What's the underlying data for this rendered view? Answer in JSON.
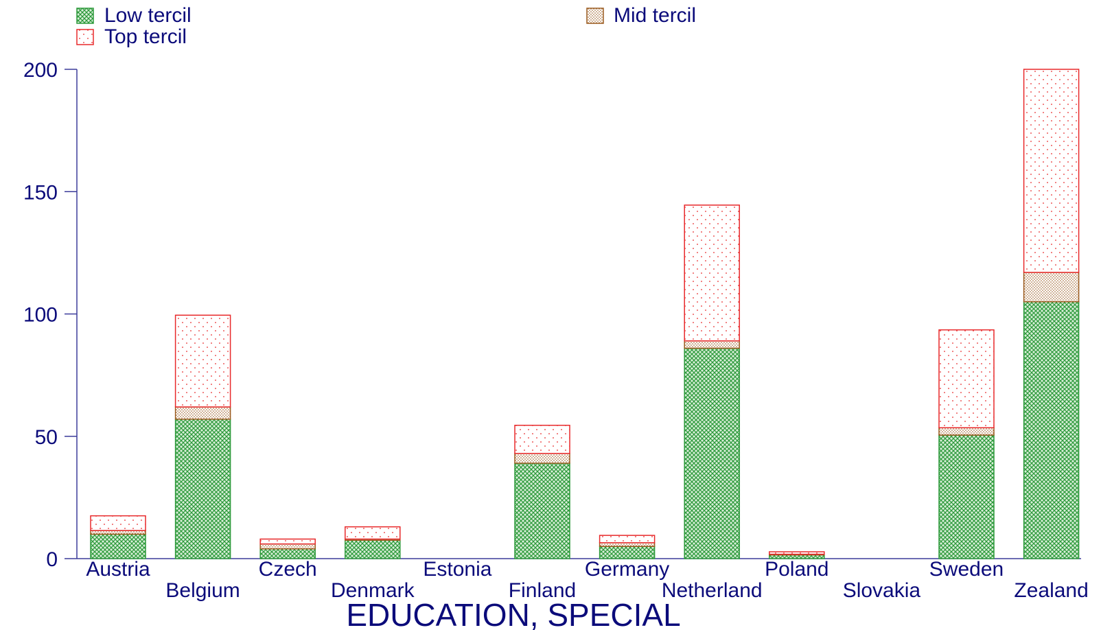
{
  "chart_data": {
    "type": "bar",
    "stacked": true,
    "xlabel": "EDUCATION, SPECIAL",
    "ylabel": "",
    "ylim": [
      0,
      200
    ],
    "yticks": [
      0,
      50,
      100,
      150,
      200
    ],
    "legend_position": "top",
    "grid": false,
    "categories": [
      "Austria",
      "Belgium",
      "Czech",
      "Denmark",
      "Estonia",
      "Finland",
      "Germany",
      "Netherland",
      "Poland",
      "Slovakia",
      "Sweden",
      "Zealand"
    ],
    "series": [
      {
        "name": "Low tercil",
        "color": "#2e9a3c",
        "values": [
          10,
          57,
          4,
          7.5,
          0,
          39,
          5,
          86,
          1.5,
          0,
          50.5,
          105
        ]
      },
      {
        "name": "Mid tercil",
        "color": "#9a5a1e",
        "values": [
          1.5,
          5,
          2,
          0.5,
          0,
          4,
          1.5,
          3,
          0.3,
          0,
          3,
          12
        ]
      },
      {
        "name": "Top tercil",
        "color": "#e8282a",
        "values": [
          6,
          37.5,
          2,
          5,
          0,
          11.5,
          3,
          55.5,
          1,
          0,
          40,
          83
        ]
      }
    ]
  }
}
